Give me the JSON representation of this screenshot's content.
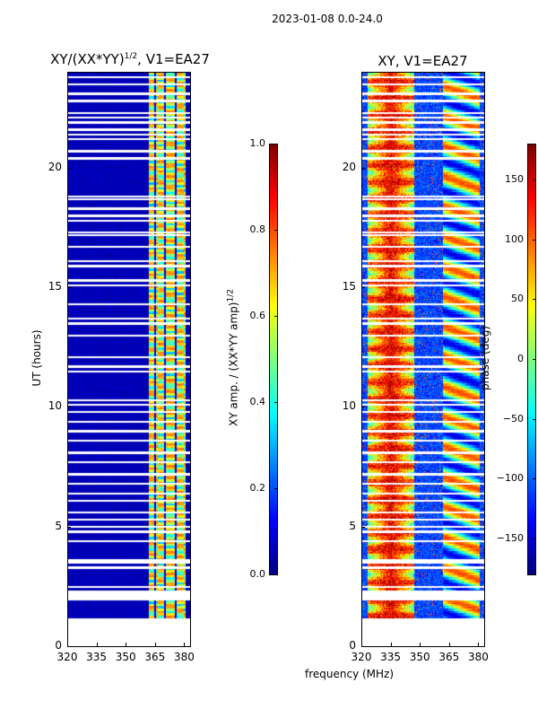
{
  "suptitle": "2023-01-08 0.0-24.0",
  "xlabel": "frequency (MHz)",
  "chart_data": [
    {
      "type": "heatmap",
      "title_main": "XY/(XX*YY)",
      "title_sup": "1/2",
      "title_tail": ", V1=EA27",
      "xlabel": "frequency (MHz)",
      "ylabel": "UT (hours)",
      "xlim": [
        320,
        383
      ],
      "ylim": [
        0,
        24
      ],
      "xticks": [
        "320",
        "335",
        "350",
        "365",
        "380"
      ],
      "yticks": [
        "0",
        "5",
        "10",
        "15",
        "20"
      ],
      "data_range_hours": [
        1.2,
        24
      ],
      "colorbar": {
        "label_main": "XY amp. / (XX*YY amp)",
        "label_sup": "1/2",
        "range": [
          0,
          1
        ],
        "ticks": [
          "0.0",
          "0.2",
          "0.4",
          "0.6",
          "0.8",
          "1.0"
        ],
        "colormap": "jet"
      },
      "notes": "Low amplitude (~0.05) over 320-361 MHz; elevated amplitude 0.3-0.8 in bands near 362-381 MHz"
    },
    {
      "type": "heatmap",
      "title_main": "XY, V1=EA27",
      "xlim": [
        320,
        383
      ],
      "ylim": [
        0,
        24
      ],
      "xticks": [
        "320",
        "335",
        "350",
        "365",
        "380"
      ],
      "yticks": [
        "0",
        "5",
        "10",
        "15",
        "20"
      ],
      "data_range_hours": [
        1.2,
        24
      ],
      "colorbar": {
        "label": "phase (deg)",
        "range": [
          -180,
          180
        ],
        "ticks": [
          "−150",
          "−100",
          "−50",
          "0",
          "50",
          "100",
          "150"
        ],
        "colormap": "jet"
      },
      "notes": "Phase ~100-180 deg around 325-345 MHz, noisy elsewhere; structured phases 362-381 MHz"
    }
  ],
  "gap_hours": [
    1.0,
    2.0,
    2.15,
    2.5,
    3.3,
    3.5,
    3.6,
    4.4,
    4.8,
    5.0,
    5.3,
    5.6,
    6.1,
    6.4,
    6.8,
    7.2,
    7.7,
    8.1,
    8.6,
    9.0,
    9.4,
    9.8,
    10.1,
    10.3,
    11.5,
    11.7,
    12.1,
    13.0,
    13.5,
    13.7,
    14.3,
    15.1,
    15.3,
    15.9,
    16.1,
    16.7,
    17.2,
    17.3,
    17.8,
    18.0,
    18.3,
    18.7,
    18.8,
    20.4,
    20.7,
    21.2,
    21.4,
    21.6,
    21.9,
    22.1,
    22.3,
    22.8,
    23.1,
    23.5,
    23.8
  ]
}
